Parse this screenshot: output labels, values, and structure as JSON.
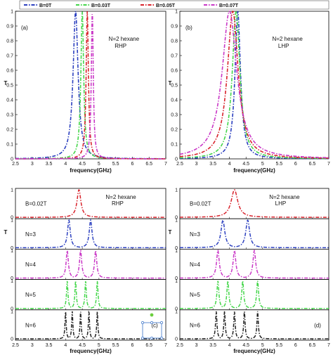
{
  "legend": {
    "entries": [
      {
        "label": "B=0T",
        "color": "#2b3fbf"
      },
      {
        "label": "B=0.03T",
        "color": "#44d64a"
      },
      {
        "label": "B=0.05T",
        "color": "#d8222b"
      },
      {
        "label": "B=0.07T",
        "color": "#c936c6"
      }
    ]
  },
  "chart_data": [
    {
      "type": "line",
      "panel_label": "(a)",
      "annotation": [
        "N=2   hexane",
        "RHP"
      ],
      "xlabel": "frequency(GHz)",
      "ylabel": "T",
      "xlim": [
        2.5,
        7
      ],
      "ylim": [
        0,
        1
      ],
      "xticks": [
        "2.5",
        "3",
        "3.5",
        "4",
        "4.5",
        "5",
        "5.5",
        "6",
        "6.5",
        "7"
      ],
      "yticks": [
        "0",
        "0.1",
        "0.2",
        "0.3",
        "0.4",
        "0.5",
        "0.6",
        "0.7",
        "0.8",
        "0.9",
        "1"
      ],
      "series": [
        {
          "name": "B=0T",
          "color": "#2b3fbf",
          "center": 4.3,
          "width": 0.09,
          "peak": 1.0
        },
        {
          "name": "B=0.03T",
          "color": "#44d64a",
          "center": 4.5,
          "width": 0.05,
          "peak": 1.0
        },
        {
          "name": "B=0.05T",
          "color": "#d8222b",
          "center": 4.65,
          "width": 0.04,
          "peak": 1.0
        },
        {
          "name": "B=0.07T",
          "color": "#c936c6",
          "center": 4.8,
          "width": 0.035,
          "peak": 1.0
        }
      ]
    },
    {
      "type": "line",
      "panel_label": "(b)",
      "annotation": [
        "N=2   hexane",
        "LHP"
      ],
      "xlabel": "frequency(GHz)",
      "ylabel": "T",
      "xlim": [
        2.5,
        7
      ],
      "ylim": [
        0,
        1
      ],
      "xticks": [
        "2.5",
        "3",
        "3.5",
        "4",
        "4.5",
        "5",
        "5.5",
        "6",
        "6.5",
        "7"
      ],
      "yticks": [
        "0",
        "0.1",
        "0.2",
        "0.3",
        "0.4",
        "0.5",
        "0.6",
        "0.7",
        "0.8",
        "0.9",
        "1"
      ],
      "series": [
        {
          "name": "B=0T",
          "color": "#2b3fbf",
          "center": 4.25,
          "width": 0.1,
          "peak": 1.0
        },
        {
          "name": "B=0.03T",
          "color": "#44d64a",
          "center": 4.2,
          "width": 0.14,
          "peak": 1.0
        },
        {
          "name": "B=0.05T",
          "color": "#d8222b",
          "center": 4.1,
          "width": 0.2,
          "peak": 1.0
        },
        {
          "name": "B=0.07T",
          "color": "#c936c6",
          "center": 4.0,
          "width": 0.27,
          "peak": 1.0
        }
      ]
    },
    {
      "type": "line",
      "panel_label": "(c)",
      "annotation": [
        "N=2   hexane",
        "RHP"
      ],
      "xlabel": "frequency(GHz)",
      "ylabel": "T",
      "xlim": [
        2.5,
        7
      ],
      "ylim": [
        0,
        1
      ],
      "xticks": [
        "2.5",
        "3",
        "3.5",
        "4",
        "4.5",
        "5",
        "5.5",
        "6",
        "6.5",
        "7"
      ],
      "yticks": [
        "0",
        "1"
      ],
      "rows": [
        {
          "label": "B=0.02T",
          "color": "#d8222b",
          "peaks": [
            4.4
          ],
          "width": 0.07
        },
        {
          "label": "N=3",
          "color": "#2b3fbf",
          "peaks": [
            4.1,
            4.75
          ],
          "width": 0.05
        },
        {
          "label": "N=4",
          "color": "#c936c6",
          "peaks": [
            4.05,
            4.45,
            4.9
          ],
          "width": 0.04
        },
        {
          "label": "N=5",
          "color": "#44d64a",
          "peaks": [
            4.05,
            4.3,
            4.6,
            4.95
          ],
          "width": 0.025
        },
        {
          "label": "N=6",
          "color": "#222222",
          "peaks": [
            4.0,
            4.2,
            4.45,
            4.7,
            4.95
          ],
          "width": 0.02
        }
      ]
    },
    {
      "type": "line",
      "panel_label": "(d)",
      "annotation": [
        "N=2   hexane",
        "LHP"
      ],
      "xlabel": "frequency(GHz)",
      "ylabel": "T",
      "xlim": [
        2.5,
        7
      ],
      "ylim": [
        0,
        1
      ],
      "xticks": [
        "2.5",
        "3",
        "3.5",
        "4",
        "4.5",
        "5",
        "5.5",
        "6",
        "6.5",
        "7"
      ],
      "yticks": [
        "0",
        "1"
      ],
      "rows": [
        {
          "label": "B=0.02T",
          "color": "#d8222b",
          "peaks": [
            4.15
          ],
          "width": 0.12
        },
        {
          "label": "N=3",
          "color": "#2b3fbf",
          "peaks": [
            3.8,
            4.55
          ],
          "width": 0.07
        },
        {
          "label": "N=4",
          "color": "#c936c6",
          "peaks": [
            3.65,
            4.15,
            4.75
          ],
          "width": 0.05
        },
        {
          "label": "N=5",
          "color": "#44d64a",
          "peaks": [
            3.65,
            3.95,
            4.4,
            4.85
          ],
          "width": 0.035
        },
        {
          "label": "N=6",
          "color": "#222222",
          "peaks": [
            3.6,
            3.85,
            4.15,
            4.45,
            4.85
          ],
          "width": 0.025
        }
      ]
    }
  ]
}
